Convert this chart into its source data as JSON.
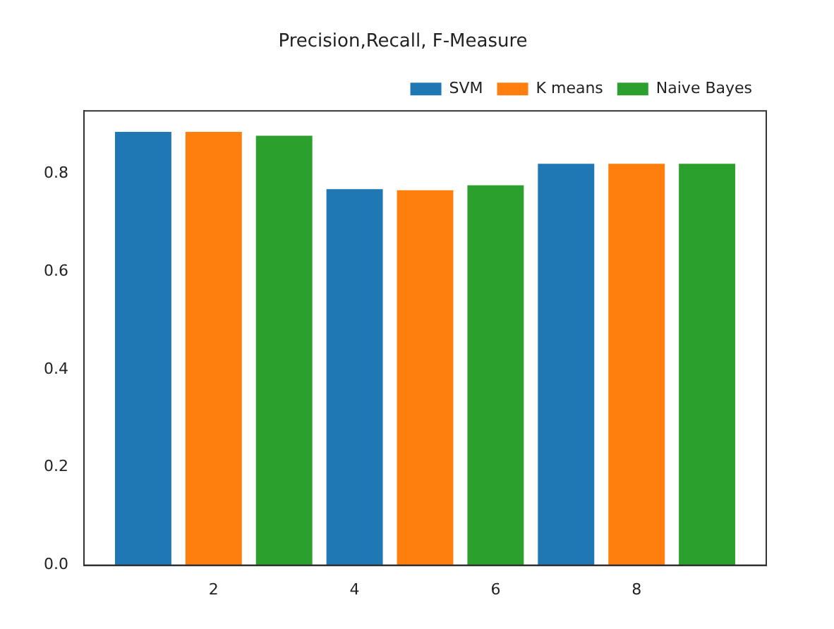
{
  "chart_data": {
    "type": "bar",
    "title": "Precision,Recall, F-Measure",
    "series": [
      {
        "name": "SVM",
        "color": "#1f77b4",
        "x": [
          1,
          4,
          7
        ],
        "values": [
          0.885,
          0.768,
          0.82
        ]
      },
      {
        "name": "K means",
        "color": "#ff7f0e",
        "x": [
          2,
          5,
          8
        ],
        "values": [
          0.885,
          0.766,
          0.82
        ]
      },
      {
        "name": "Naive Bayes",
        "color": "#2ca02c",
        "x": [
          3,
          6,
          9
        ],
        "values": [
          0.877,
          0.776,
          0.82
        ]
      }
    ],
    "xlim": [
      0.16,
      9.84
    ],
    "xticks": [
      2,
      4,
      6,
      8
    ],
    "ylim": [
      0,
      0.928
    ],
    "yticks": [
      {
        "value": 0,
        "label": "0.0"
      },
      {
        "value": 0.2,
        "label": "0.2"
      },
      {
        "value": 0.4,
        "label": "0.4"
      },
      {
        "value": 0.6,
        "label": "0.6"
      },
      {
        "value": 0.8,
        "label": "0.8"
      }
    ],
    "grid": false,
    "legend": "top right"
  }
}
